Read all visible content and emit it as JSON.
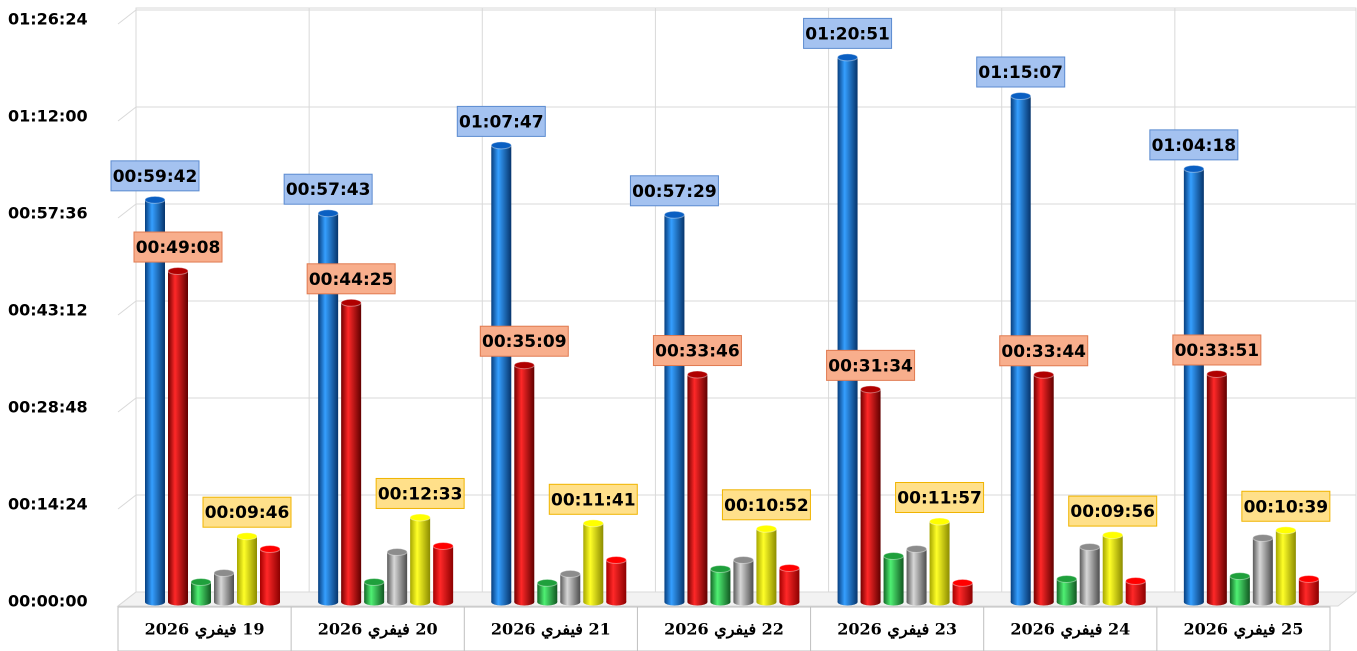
{
  "chart_data": {
    "type": "bar",
    "categories": [
      "19 فيفري 2026",
      "20 فيفري 2026",
      "21 فيفري 2026",
      "22 فيفري 2026",
      "23 فيفري 2026",
      "24 فيفري 2026",
      "25 فيفري 2026"
    ],
    "ylim": [
      0,
      5184
    ],
    "yticks": [
      {
        "value": 0,
        "label": "00:00:00"
      },
      {
        "value": 864,
        "label": "00:14:24"
      },
      {
        "value": 1728,
        "label": "00:28:48"
      },
      {
        "value": 2592,
        "label": "00:43:12"
      },
      {
        "value": 3456,
        "label": "00:57:36"
      },
      {
        "value": 4320,
        "label": "01:12:00"
      },
      {
        "value": 5184,
        "label": "01:26:24"
      }
    ],
    "grid": true,
    "series": [
      {
        "color": "#0a5fc2",
        "values": [
          3582,
          3463,
          4067,
          3449,
          4851,
          4507,
          3858
        ],
        "value_labels": [
          "00:59:42",
          "00:57:43",
          "01:07:47",
          "00:57:29",
          "01:20:51",
          "01:15:07",
          "01:04:18"
        ],
        "label_color": "#a4c2f0"
      },
      {
        "color": "#b00000",
        "values": [
          2948,
          2665,
          2109,
          2026,
          1894,
          2024,
          2031
        ],
        "value_labels": [
          "00:49:08",
          "00:44:25",
          "00:35:09",
          "00:33:46",
          "00:31:34",
          "00:33:44",
          "00:33:51"
        ],
        "label_color": "#f8ae8c"
      },
      {
        "color": "#1fa03c",
        "values": [
          178,
          178,
          170,
          294,
          410,
          205,
          231
        ]
      },
      {
        "color": "#8c8c8c",
        "values": [
          258,
          445,
          250,
          374,
          472,
          490,
          570
        ]
      },
      {
        "color": "#ffff00",
        "values": [
          586,
          753,
          701,
          652,
          717,
          596,
          639
        ],
        "value_labels": [
          "00:09:46",
          "00:12:33",
          "00:11:41",
          "00:10:52",
          "00:11:57",
          "00:09:56",
          "00:10:39"
        ],
        "label_color": "#ffe08a"
      },
      {
        "color": "#ff0000",
        "values": [
          472,
          499,
          374,
          303,
          170,
          187,
          205
        ]
      }
    ]
  }
}
